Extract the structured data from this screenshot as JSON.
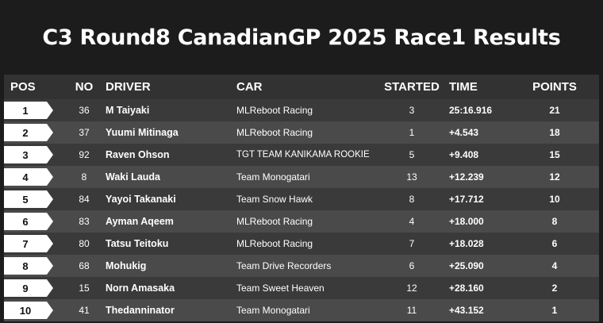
{
  "page": {
    "title": "C3 Round8 CanadianGP 2025 Race1 Results"
  },
  "table": {
    "headers": {
      "pos": "POS",
      "no": "NO",
      "driver": "DRIVER",
      "car": "CAR",
      "started": "STARTED",
      "time": "TIME",
      "points": "POINTS"
    },
    "rows": [
      {
        "pos": "1",
        "no": "36",
        "driver": "M Taiyaki",
        "car": "MLReboot Racing",
        "started": "3",
        "time": "25:16.916",
        "points": "21"
      },
      {
        "pos": "2",
        "no": "37",
        "driver": "Yuumi Mitinaga",
        "car": "MLReboot Racing",
        "started": "1",
        "time": "+4.543",
        "points": "18"
      },
      {
        "pos": "3",
        "no": "92",
        "driver": "Raven Ohson",
        "car": "TGT TEAM KANIKAMA ROOKIE",
        "started": "5",
        "time": "+9.408",
        "points": "15"
      },
      {
        "pos": "4",
        "no": "8",
        "driver": "Waki Lauda",
        "car": "Team Monogatari",
        "started": "13",
        "time": "+12.239",
        "points": "12"
      },
      {
        "pos": "5",
        "no": "84",
        "driver": "Yayoi Takanaki",
        "car": "Team Snow Hawk",
        "started": "8",
        "time": "+17.712",
        "points": "10"
      },
      {
        "pos": "6",
        "no": "83",
        "driver": "Ayman Aqeem",
        "car": "MLReboot Racing",
        "started": "4",
        "time": "+18.000",
        "points": "8"
      },
      {
        "pos": "7",
        "no": "80",
        "driver": "Tatsu Teitoku",
        "car": "MLReboot Racing",
        "started": "7",
        "time": "+18.028",
        "points": "6"
      },
      {
        "pos": "8",
        "no": "68",
        "driver": "Mohukig",
        "car": "Team Drive Recorders",
        "started": "6",
        "time": "+25.090",
        "points": "4"
      },
      {
        "pos": "9",
        "no": "15",
        "driver": "Norn Amasaka",
        "car": "Team Sweet Heaven",
        "started": "12",
        "time": "+28.160",
        "points": "2"
      },
      {
        "pos": "10",
        "no": "41",
        "driver": "Thedanninator",
        "car": "Team Monogatari",
        "started": "11",
        "time": "+43.152",
        "points": "1"
      }
    ]
  }
}
